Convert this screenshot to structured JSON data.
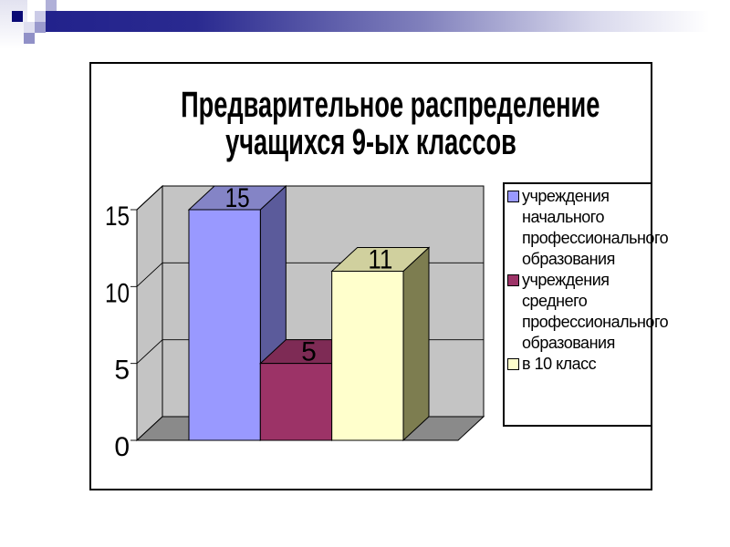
{
  "slide": {
    "background": "#FFFFFF"
  },
  "decoration": {
    "accent_bar_gradient": [
      "#22228C",
      "#2A2A90",
      "#8080BC",
      "#D8D8EC",
      "#FFFFFF"
    ],
    "strip_gradient": [
      "#E2E2F0",
      "#FFFFFF"
    ],
    "square_colors": [
      "#0A0A75",
      "#B0B0D8",
      "#CBCBE7",
      "#DFDFF0",
      "#9A9ACD",
      "#9090C7"
    ]
  },
  "chart_data": {
    "type": "bar",
    "projection": "3d",
    "title": "Предварительное распределение учащихся 9-ых классов",
    "title_lines": [
      "Предварительное распределение",
      "учащихся 9-ых классов"
    ],
    "series": [
      {
        "name": "учреждения начального профессионального образования",
        "value": 15,
        "color_front": "#9999FF",
        "color_top": "#8484C6",
        "color_side": "#5B5B9B"
      },
      {
        "name": "учреждения среднего профессионального образования",
        "value": 5,
        "color_front": "#9C3367",
        "color_top": "#7E2B55",
        "color_side": "#662244"
      },
      {
        "name": "в 10 класс",
        "value": 11,
        "color_front": "#FFFFCC",
        "color_top": "#D0D09E",
        "color_side": "#7D7D50"
      }
    ],
    "yticks": [
      0,
      5,
      10,
      15
    ],
    "ylim": [
      0,
      15
    ],
    "show_data_labels": true,
    "data_labels": [
      "15",
      "5",
      "11"
    ],
    "legend_position": "right",
    "wall_color": "#C4C4C4",
    "floor_color": "#8A8A8A",
    "grid": true
  }
}
